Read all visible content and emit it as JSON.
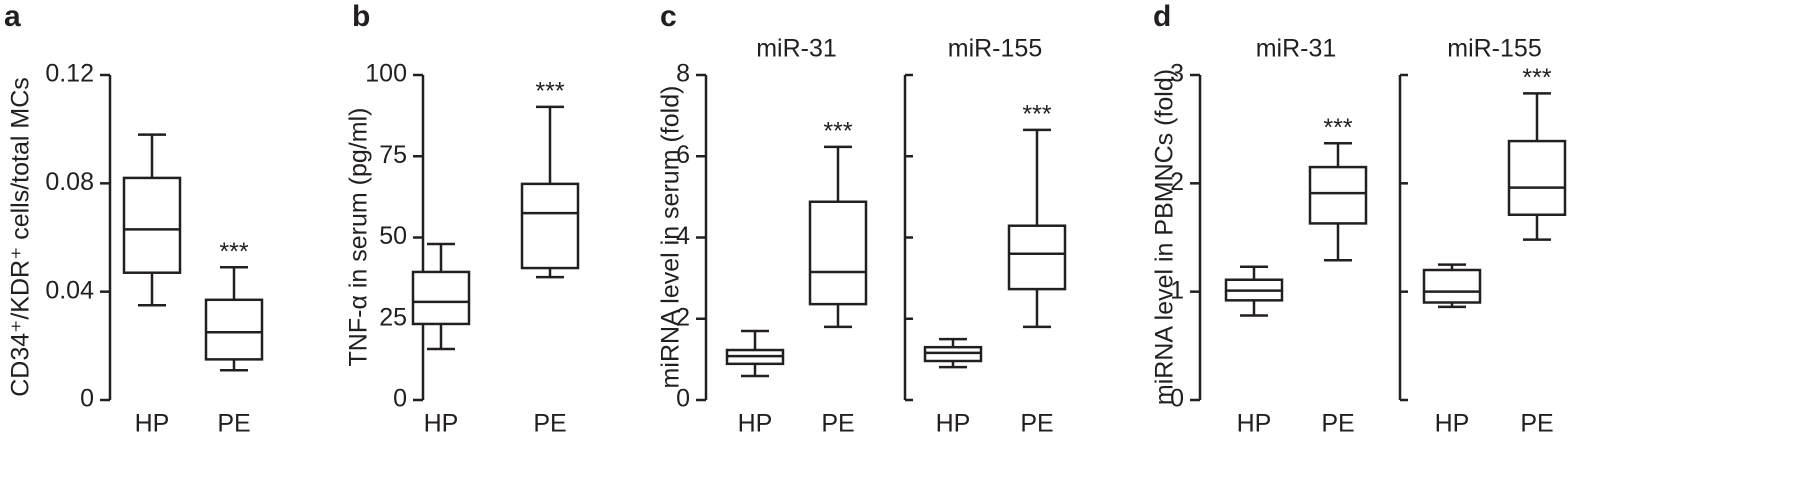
{
  "chart_data": [
    {
      "type": "box",
      "panel_label": "a",
      "ylabel": "CD34⁺/KDR⁺ cells/total MCs",
      "ylim": [
        0,
        0.12
      ],
      "yticks": [
        0,
        0.04,
        0.08,
        0.12
      ],
      "subplots": [
        {
          "categories": [
            "HP",
            "PE"
          ],
          "annotations": [
            null,
            "***"
          ],
          "boxes": [
            {
              "whislo": 0.035,
              "q1": 0.047,
              "median": 0.063,
              "q3": 0.082,
              "whishi": 0.098
            },
            {
              "whislo": 0.011,
              "q1": 0.015,
              "median": 0.025,
              "q3": 0.037,
              "whishi": 0.049
            }
          ]
        }
      ]
    },
    {
      "type": "box",
      "panel_label": "b",
      "ylabel": "TNF-α in serum (pg/ml)",
      "ylim": [
        0,
        100
      ],
      "yticks": [
        0,
        25,
        50,
        75,
        100
      ],
      "subplots": [
        {
          "categories": [
            "HP",
            "PE"
          ],
          "annotations": [
            null,
            "***"
          ],
          "boxes": [
            {
              "whislo": 15.7,
              "q1": 23.4,
              "median": 30.2,
              "q3": 39.4,
              "whishi": 48
            },
            {
              "whislo": 37.8,
              "q1": 40.6,
              "median": 57.5,
              "q3": 66.5,
              "whishi": 90.2
            }
          ]
        }
      ]
    },
    {
      "type": "box",
      "panel_label": "c",
      "ylabel": "miRNA level in serum (fold)",
      "ylim": [
        0,
        8
      ],
      "yticks": [
        0,
        2,
        4,
        6,
        8
      ],
      "subplots": [
        {
          "title": "miR-31",
          "categories": [
            "HP",
            "PE"
          ],
          "annotations": [
            null,
            "***"
          ],
          "boxes": [
            {
              "whislo": 0.59,
              "q1": 0.89,
              "median": 1.08,
              "q3": 1.23,
              "whishi": 1.7
            },
            {
              "whislo": 1.8,
              "q1": 2.36,
              "median": 3.15,
              "q3": 4.88,
              "whishi": 6.23
            }
          ]
        },
        {
          "title": "miR-155",
          "categories": [
            "HP",
            "PE"
          ],
          "annotations": [
            null,
            "***"
          ],
          "boxes": [
            {
              "whislo": 0.81,
              "q1": 0.96,
              "median": 1.16,
              "q3": 1.3,
              "whishi": 1.5
            },
            {
              "whislo": 1.8,
              "q1": 2.73,
              "median": 3.6,
              "q3": 4.29,
              "whishi": 6.65
            }
          ]
        }
      ]
    },
    {
      "type": "box",
      "panel_label": "d",
      "ylabel": "miRNA level in PBMNCs (fold)",
      "ylim": [
        0,
        3
      ],
      "yticks": [
        0,
        1,
        2,
        3
      ],
      "subplots": [
        {
          "title": "miR-31",
          "categories": [
            "HP",
            "PE"
          ],
          "annotations": [
            null,
            "***"
          ],
          "boxes": [
            {
              "whislo": 0.78,
              "q1": 0.92,
              "median": 1.01,
              "q3": 1.11,
              "whishi": 1.23
            },
            {
              "whislo": 1.29,
              "q1": 1.63,
              "median": 1.91,
              "q3": 2.15,
              "whishi": 2.37
            }
          ]
        },
        {
          "title": "miR-155",
          "categories": [
            "HP",
            "PE"
          ],
          "annotations": [
            null,
            "***"
          ],
          "boxes": [
            {
              "whislo": 0.86,
              "q1": 0.9,
              "median": 1.0,
              "q3": 1.2,
              "whishi": 1.25
            },
            {
              "whislo": 1.48,
              "q1": 1.71,
              "median": 1.96,
              "q3": 2.39,
              "whishi": 2.83
            }
          ]
        }
      ]
    }
  ]
}
